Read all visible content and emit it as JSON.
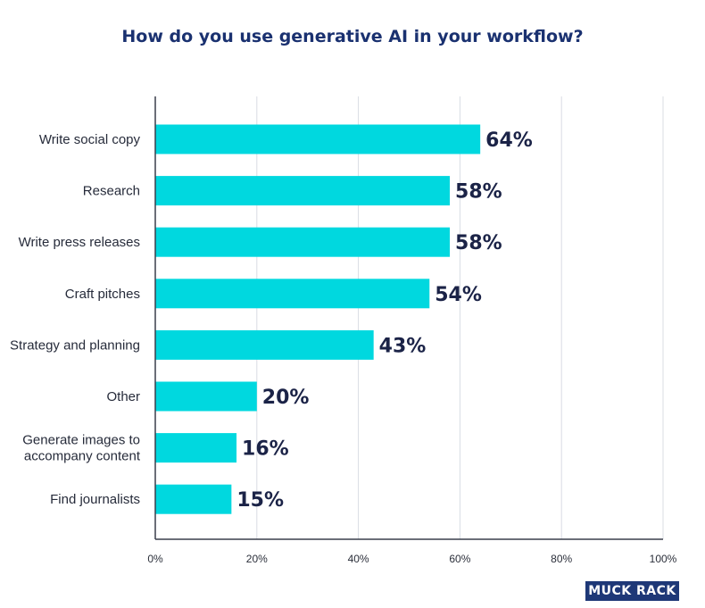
{
  "chart_data": {
    "type": "bar",
    "orientation": "horizontal",
    "title": "How do you use generative AI in your workflow?",
    "categories": [
      [
        "Write social copy"
      ],
      [
        "Research"
      ],
      [
        "Write press releases"
      ],
      [
        "Craft pitches"
      ],
      [
        "Strategy and planning"
      ],
      [
        "Other"
      ],
      [
        "Generate images to",
        "accompany content"
      ],
      [
        "Find journalists"
      ]
    ],
    "values": [
      64,
      58,
      58,
      54,
      43,
      20,
      16,
      15
    ],
    "value_labels": [
      "64%",
      "58%",
      "58%",
      "54%",
      "43%",
      "20%",
      "16%",
      "15%"
    ],
    "xlim": [
      0,
      100
    ],
    "xticks": [
      0,
      20,
      40,
      60,
      80,
      100
    ],
    "xtick_labels": [
      "0%",
      "20%",
      "40%",
      "60%",
      "80%",
      "100%"
    ],
    "grid": "vertical",
    "bar_color": "#00d8df",
    "xlabel": "",
    "ylabel": ""
  },
  "branding": {
    "logo_text": "MUCK RACK",
    "logo_color": "#1e3877"
  }
}
